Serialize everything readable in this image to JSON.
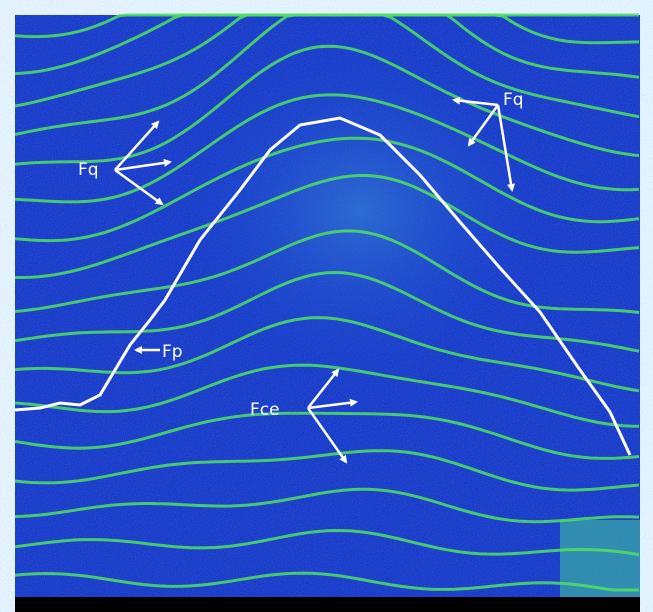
{
  "annotations": [
    {
      "label": "Fq"
    },
    {
      "label": "Fq"
    },
    {
      "label": "Fp"
    },
    {
      "label": "Fce"
    }
  ]
}
